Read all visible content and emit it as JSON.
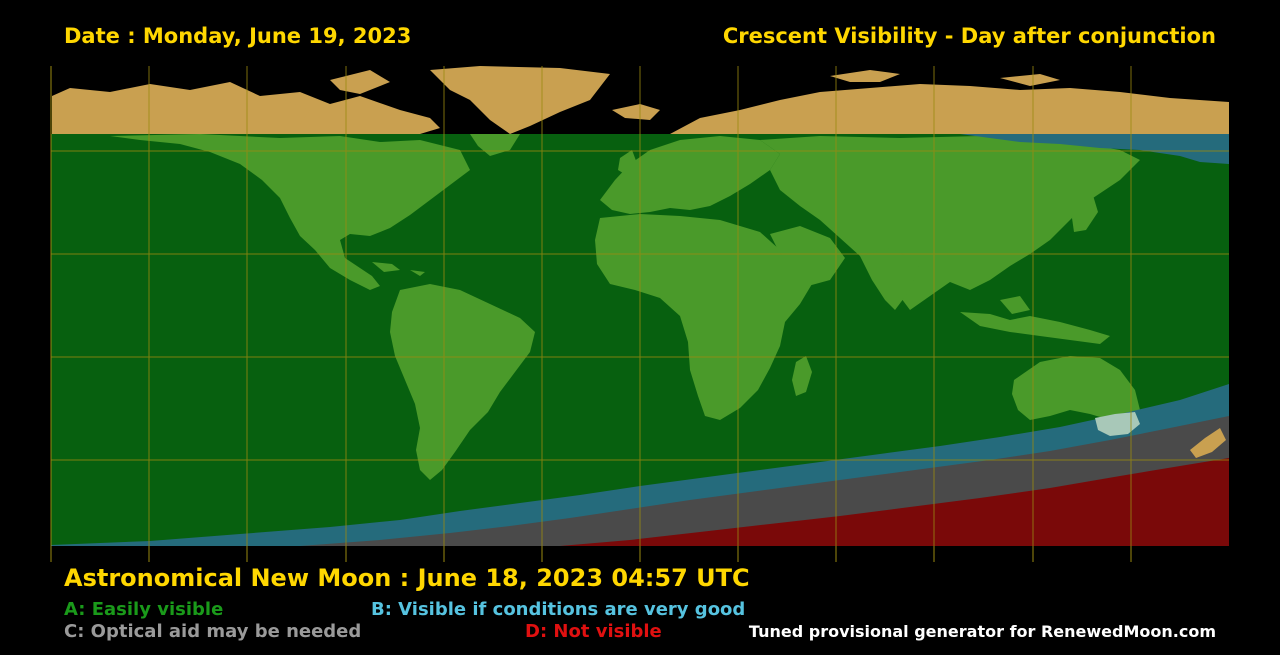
{
  "header": {
    "date_label": "Date : Monday, June 19, 2023",
    "title": "Crescent Visibility - Day after conjunction"
  },
  "footer": {
    "new_moon": "Astronomical New Moon : June 18, 2023 04:57 UTC",
    "credit": "Tuned provisional generator for RenewedMoon.com"
  },
  "legend": {
    "a": "A: Easily visible",
    "b": "B: Visible if conditions are very good",
    "c": "C: Optical aid may be needed",
    "d": "D: Not visible"
  },
  "colors": {
    "text_yellow": "#ffd700",
    "zone_a": "#07600f",
    "zone_b": "#256b7c",
    "zone_c": "#4a4a4a",
    "zone_d": "#7a0909",
    "legend_a": "#1a9a1a",
    "legend_b": "#56c3e0",
    "legend_c": "#9a9a9a",
    "legend_d": "#e01010",
    "credit": "#ffffff",
    "land_uncovered": "#c9a050",
    "land_covered": "#4a9a2a",
    "grid": "#9a8a10"
  }
}
